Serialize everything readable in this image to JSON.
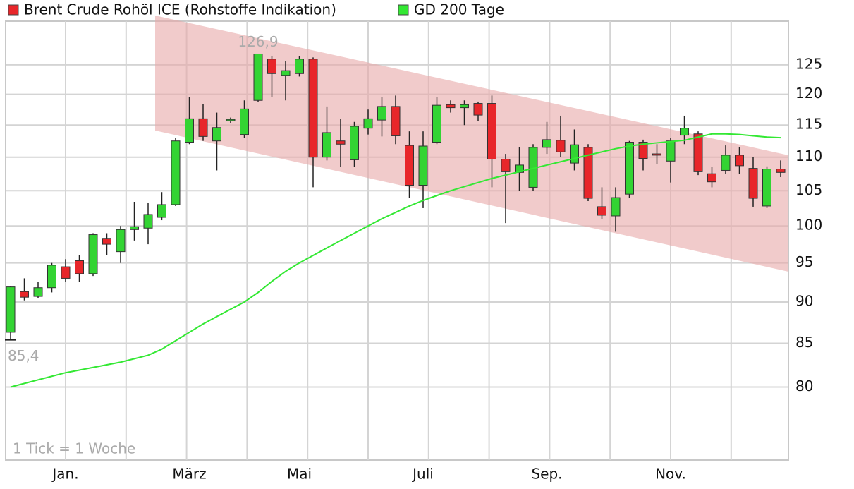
{
  "chart_data": {
    "type": "candlestick",
    "log_scale": true,
    "grid": true,
    "categories": [
      null,
      null,
      null,
      null,
      "Jan.",
      null,
      null,
      null,
      null,
      null,
      null,
      null,
      null,
      "März",
      null,
      null,
      null,
      null,
      null,
      null,
      null,
      "Mai",
      null,
      null,
      null,
      null,
      null,
      null,
      null,
      null,
      "Juli",
      null,
      null,
      null,
      null,
      null,
      null,
      null,
      null,
      "Sep.",
      null,
      null,
      null,
      null,
      null,
      null,
      null,
      null,
      "Nov.",
      null,
      null,
      null,
      null,
      null,
      null,
      null,
      null
    ],
    "ylim": [
      72.3,
      132.8
    ],
    "yticks": [
      80,
      85,
      90,
      95,
      100,
      105,
      110,
      115,
      120,
      125
    ],
    "annotations": [
      "126,9",
      "85,4",
      "1 Tick = 1 Woche"
    ],
    "series": [
      {
        "name": "Brent Crude Rohöl ICE (Rohstoffe Indikation)",
        "color": "#e8262a",
        "up_color": "#33d433",
        "open": [
          86.3,
          91.3,
          90.7,
          91.8,
          94.5,
          95.3,
          93.6,
          98.3,
          96.5,
          99.5,
          99.7,
          101.2,
          103.0,
          112.3,
          116.0,
          112.5,
          115.7,
          113.5,
          119.0,
          126.0,
          123.2,
          123.5,
          126.0,
          110.0,
          112.5,
          109.6,
          114.5,
          115.8,
          118.0,
          111.8,
          105.8,
          112.3,
          118.3,
          117.8,
          118.5,
          118.5,
          109.7,
          107.7,
          105.5,
          111.5,
          112.6,
          109.1,
          111.5,
          102.7,
          101.4,
          104.5,
          112.3,
          110.5,
          109.4,
          113.4,
          113.6,
          107.5,
          108.0,
          110.3,
          108.3,
          102.8,
          108.2
        ],
        "high": [
          92.0,
          93.0,
          92.5,
          95.0,
          95.5,
          96.0,
          99.0,
          99.0,
          100.0,
          103.4,
          103.3,
          104.8,
          113.0,
          119.5,
          118.4,
          117.0,
          116.2,
          119.0,
          126.9,
          126.5,
          125.7,
          126.5,
          126.3,
          118.0,
          116.0,
          115.5,
          117.5,
          119.5,
          119.8,
          114.0,
          114.0,
          119.5,
          119.0,
          119.0,
          118.8,
          119.8,
          110.5,
          111.5,
          112.0,
          115.5,
          116.5,
          114.3,
          112.0,
          105.5,
          105.5,
          112.5,
          112.7,
          112.0,
          113.0,
          116.5,
          114.0,
          108.5,
          111.8,
          111.5,
          110.0,
          108.6,
          109.5
        ],
        "low": [
          85.4,
          90.2,
          90.5,
          91.2,
          92.5,
          92.5,
          93.3,
          96.0,
          95.0,
          98.0,
          97.5,
          100.8,
          102.8,
          112.0,
          112.5,
          108.0,
          115.3,
          113.0,
          118.8,
          119.5,
          119.0,
          123.0,
          105.5,
          109.5,
          108.5,
          108.5,
          113.5,
          113.2,
          112.0,
          104.0,
          102.5,
          112.0,
          117.0,
          115.0,
          115.6,
          105.5,
          100.4,
          105.0,
          105.0,
          110.5,
          110.0,
          108.0,
          103.5,
          101.0,
          99.2,
          104.0,
          108.0,
          109.0,
          106.2,
          112.0,
          107.3,
          105.5,
          107.5,
          107.5,
          102.7,
          102.5,
          107.0
        ],
        "close": [
          91.9,
          90.6,
          91.8,
          94.7,
          93.0,
          93.6,
          98.8,
          97.5,
          99.5,
          99.9,
          101.6,
          103.0,
          112.5,
          116.0,
          113.2,
          114.6,
          115.9,
          117.6,
          126.9,
          123.5,
          124.0,
          126.0,
          110.0,
          113.8,
          112.0,
          114.8,
          116.0,
          118.0,
          113.3,
          105.8,
          111.7,
          118.2,
          117.8,
          118.3,
          116.6,
          109.7,
          107.8,
          108.8,
          111.5,
          112.7,
          110.8,
          111.9,
          103.9,
          101.5,
          104.0,
          112.3,
          109.8,
          110.3,
          112.5,
          114.5,
          107.8,
          106.3,
          110.3,
          108.7,
          103.9,
          108.2,
          107.7
        ]
      },
      {
        "name": "GD 200 Tage",
        "type": "line",
        "color": "#33e833",
        "values": [
          80.0,
          80.4,
          80.8,
          81.2,
          81.6,
          81.9,
          82.2,
          82.5,
          82.8,
          83.2,
          83.6,
          84.3,
          85.3,
          86.3,
          87.3,
          88.2,
          89.1,
          90.0,
          91.2,
          92.6,
          93.9,
          95.0,
          96.0,
          97.0,
          98.0,
          99.0,
          100.0,
          101.0,
          101.9,
          102.8,
          103.6,
          104.3,
          105.0,
          105.6,
          106.2,
          106.8,
          107.3,
          107.8,
          108.3,
          108.8,
          109.3,
          109.8,
          110.3,
          110.8,
          111.3,
          111.7,
          112.0,
          112.2,
          112.4,
          112.6,
          113.1,
          113.6,
          113.6,
          113.5,
          113.3,
          113.1,
          113.0
        ]
      }
    ]
  }
}
